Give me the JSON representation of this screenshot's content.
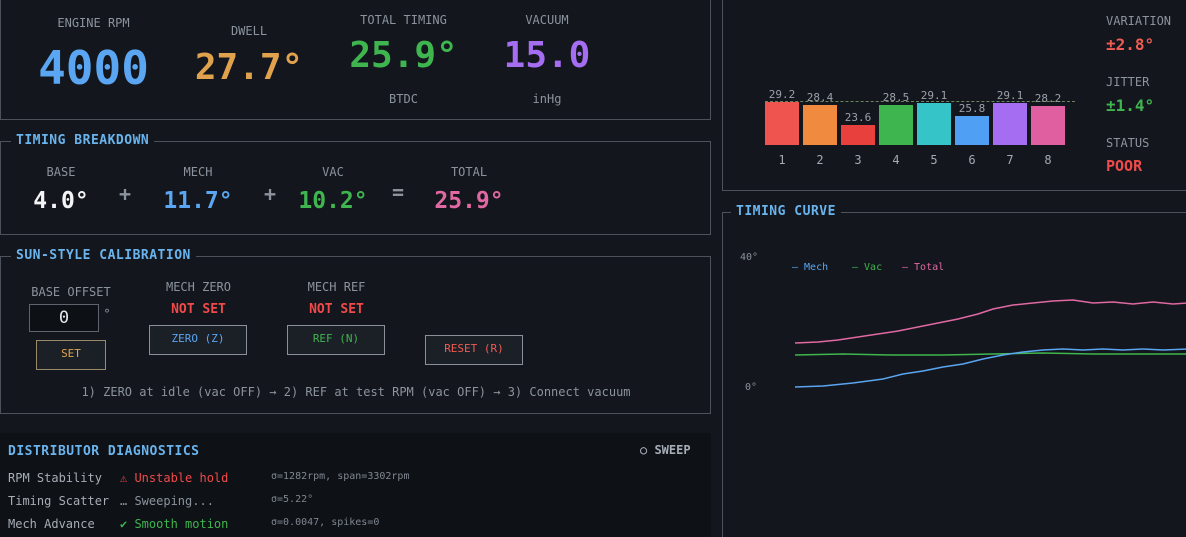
{
  "readouts": {
    "rpm": {
      "label": "ENGINE RPM",
      "value": "4000"
    },
    "dwell": {
      "label": "DWELL",
      "value": "27.7°"
    },
    "timing": {
      "label": "TOTAL TIMING",
      "value": "25.9°",
      "unit": "BTDC"
    },
    "vacuum": {
      "label": "VACUUM",
      "value": "15.0",
      "unit": "inHg"
    }
  },
  "breakdown": {
    "title": "TIMING BREAKDOWN",
    "base": {
      "label": "BASE",
      "value": "4.0°"
    },
    "mech": {
      "label": "MECH",
      "value": "11.7°"
    },
    "vac": {
      "label": "VAC",
      "value": "10.2°"
    },
    "total": {
      "label": "TOTAL",
      "value": "25.9°"
    },
    "plus": "+",
    "equals": "="
  },
  "calibration": {
    "title": "SUN-STYLE CALIBRATION",
    "base_offset_label": "BASE OFFSET",
    "base_offset_value": "0",
    "degree": "°",
    "set_label": "SET",
    "mech_zero_label": "MECH ZERO",
    "mech_zero_status": "NOT SET",
    "mech_ref_label": "MECH REF",
    "mech_ref_status": "NOT SET",
    "zero_button": "ZERO (Z)",
    "ref_button": "REF (N)",
    "reset_button": "RESET (R)",
    "instructions": "1) ZERO at idle (vac OFF) → 2) REF at test RPM (vac OFF) → 3) Connect vacuum"
  },
  "diagnostics": {
    "title": "DISTRIBUTOR DIAGNOSTICS",
    "sweep_label": "○ SWEEP",
    "rows": [
      {
        "name": "RPM Stability",
        "status": "⚠ Unstable hold",
        "detail": "σ=1282rpm, span=3302rpm"
      },
      {
        "name": "Timing Scatter",
        "status": "… Sweeping...",
        "detail": "σ=5.22°"
      },
      {
        "name": "Mech Advance",
        "status": "✔ Smooth motion",
        "detail": "σ=0.0047, spikes=0"
      }
    ]
  },
  "cylinders": {
    "labels": [
      "1",
      "2",
      "3",
      "4",
      "5",
      "6",
      "7",
      "8"
    ],
    "values": [
      29.2,
      28.4,
      23.6,
      28.5,
      29.1,
      25.8,
      29.1,
      28.2
    ],
    "value_labels": [
      "29.2",
      "28.4",
      "23.6",
      "28.5",
      "29.1",
      "25.8",
      "29.1",
      "28.2"
    ],
    "colors": [
      "#f0544f",
      "#ef8a3e",
      "#e8403c",
      "#3fb54f",
      "#35c4c8",
      "#4f9ff5",
      "#a46df2",
      "#e05fa0"
    ],
    "reference": 29.6
  },
  "stats": {
    "variation_label": "VARIATION",
    "variation_value": "±2.8°",
    "jitter_label": "JITTER",
    "jitter_value": "±1.4°",
    "status_label": "STATUS",
    "status_value": "POOR"
  },
  "curve": {
    "title": "TIMING CURVE",
    "y_max_label": "40°",
    "y_min_label": "0°",
    "legend": [
      {
        "label": "— Mech",
        "color": "#5aa6f2"
      },
      {
        "label": "— Vac",
        "color": "#3fb54f"
      },
      {
        "label": "— Total",
        "color": "#e069a3"
      }
    ]
  },
  "colors": {
    "blue": "#5aa6f2",
    "orange": "#e0a24c",
    "green": "#3fb54f",
    "purple": "#a46df2",
    "pink": "#e069a3",
    "red": "#f04a4a"
  }
}
